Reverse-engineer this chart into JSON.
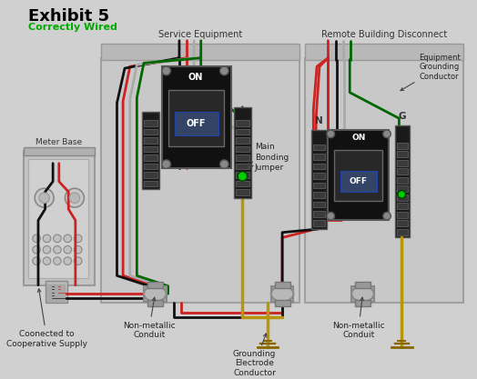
{
  "title": "Exhibit 5",
  "subtitle": "Correctly Wired",
  "service_label": "Service Equipment",
  "remote_label": "Remote Building Disconnect",
  "meter_label": "Meter Base",
  "label_nonmet1": "Non-metallic\nConduit",
  "label_gec": "Grounding\nElectrode\nConductor",
  "label_nonmet2": "Non-metallic\nConduit",
  "label_egc": "Equipment\nGrounding\nConductor",
  "label_connected": "Coonected to\nCooperative Supply",
  "label_mbj": "Main\nBonding\nJumper",
  "bg_color": "#d0d0d0",
  "panel_fc": "#c8c8c8",
  "panel_ec": "#a0a0a0",
  "panel_top_fc": "#b8b8b8",
  "meter_fc": "#c4c4c4",
  "breaker_fc": "#111111",
  "breaker_inner": "#222222",
  "bar_fc": "#1a1a1a",
  "bar_slot": "#3a3a3a",
  "knob_fc": "#888888",
  "wire_red": "#cc2222",
  "wire_black": "#111111",
  "wire_white": "#aaaaaa",
  "wire_green": "#006600",
  "wire_bare": "#b8960c",
  "green_dot": "#00cc00",
  "figsize": [
    5.24,
    4.17
  ],
  "dpi": 100
}
